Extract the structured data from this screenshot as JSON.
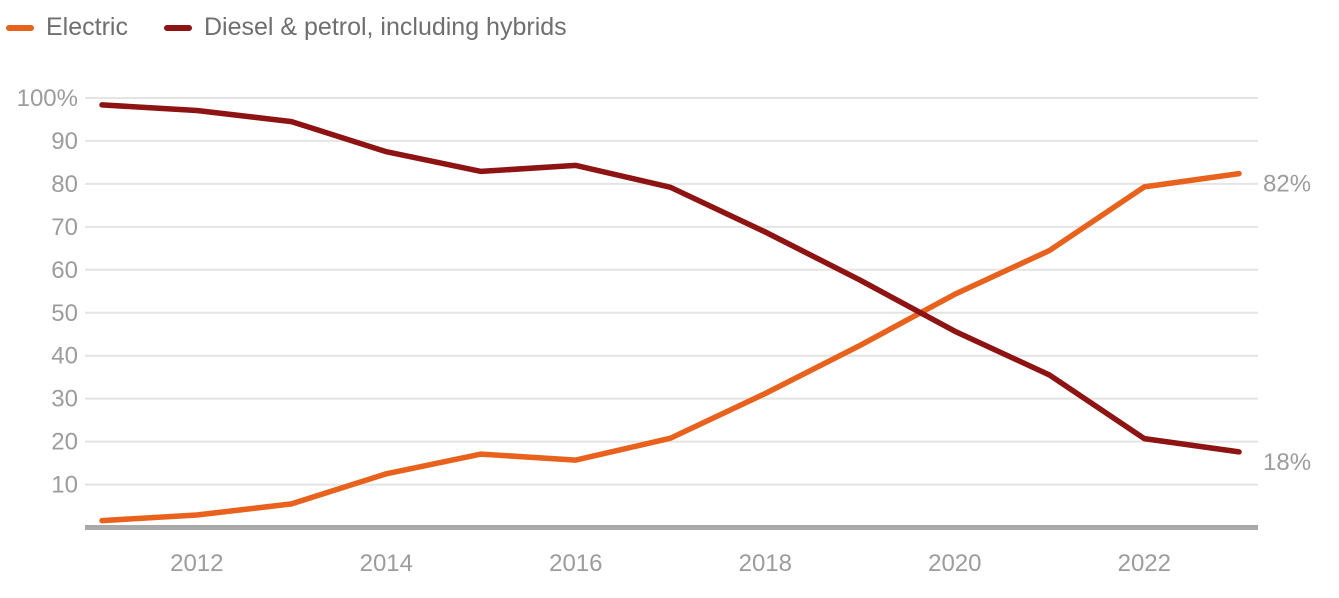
{
  "legend": {
    "items": [
      {
        "label": "Electric",
        "color": "#e8621d"
      },
      {
        "label": "Diesel & petrol, including hybrids",
        "color": "#8e1313"
      }
    ]
  },
  "chart_data": {
    "type": "line",
    "x": [
      2011,
      2012,
      2013,
      2014,
      2015,
      2016,
      2017,
      2018,
      2019,
      2020,
      2021,
      2022,
      2023
    ],
    "series": [
      {
        "name": "Electric",
        "color": "#e8621d",
        "values": [
          1.6,
          2.9,
          5.5,
          12.5,
          17.1,
          15.7,
          20.8,
          31.2,
          42.4,
          54.3,
          64.5,
          79.3,
          82.4
        ],
        "end_label": "82%"
      },
      {
        "name": "Diesel & petrol, including hybrids",
        "color": "#8e1313",
        "values": [
          98.4,
          97.1,
          94.5,
          87.5,
          82.9,
          84.3,
          79.2,
          68.8,
          57.6,
          45.7,
          35.5,
          20.7,
          17.6
        ],
        "end_label": "18%"
      }
    ],
    "xticks": [
      2012,
      2014,
      2016,
      2018,
      2020,
      2022
    ],
    "yticks": [
      {
        "label": "100%",
        "value": 100
      },
      {
        "label": "90",
        "value": 90
      },
      {
        "label": "80",
        "value": 80
      },
      {
        "label": "70",
        "value": 70
      },
      {
        "label": "60",
        "value": 60
      },
      {
        "label": "50",
        "value": 50
      },
      {
        "label": "40",
        "value": 40
      },
      {
        "label": "30",
        "value": 30
      },
      {
        "label": "20",
        "value": 20
      },
      {
        "label": "10",
        "value": 10
      }
    ],
    "ylim": [
      0,
      100
    ],
    "grid": "horizontal",
    "legend_position": "top-left"
  },
  "style": {
    "grid_color": "#e4e4e2",
    "baseline_color": "#a9a9a9",
    "tick_label_color": "#9c9c9c",
    "end_label_color": "#9c9c9c",
    "legend_text_color": "#6f6f6f"
  }
}
